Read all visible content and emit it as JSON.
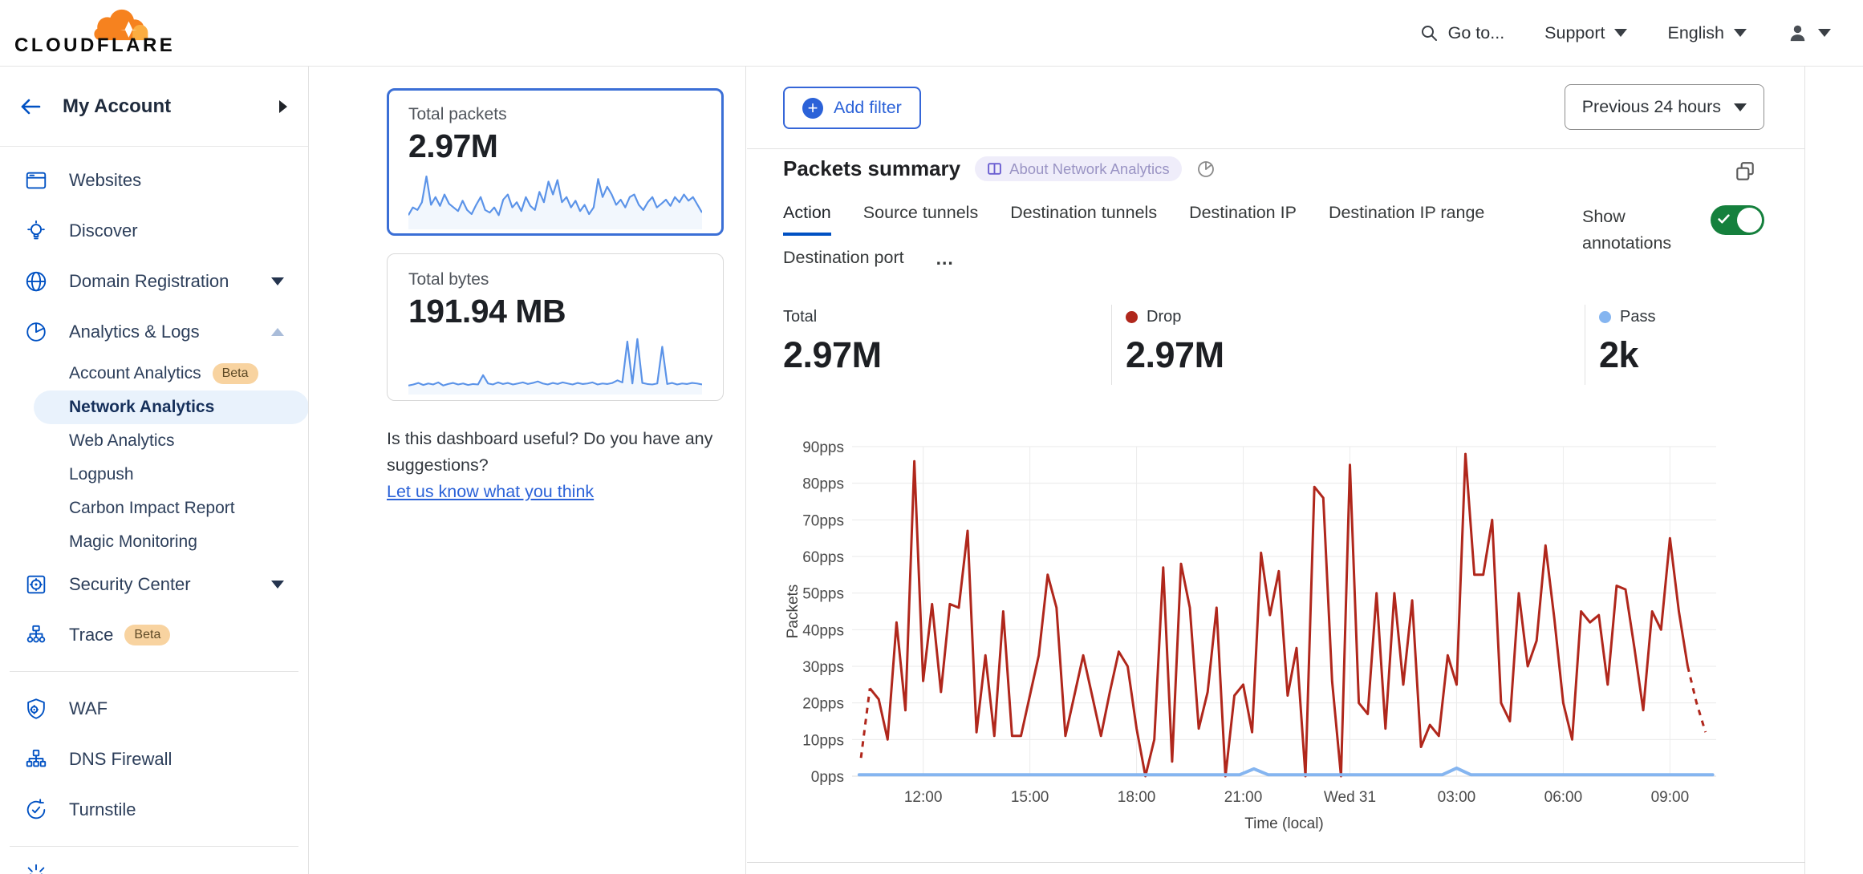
{
  "colors": {
    "accent_blue": "#0051C3",
    "link_blue": "#2B62D8",
    "cf_orange": "#F6821F",
    "cf_orange_light": "#FBAD41",
    "drop_red": "#B0271C",
    "pass_blue": "#85B5F0",
    "sparkline_blue": "#5B93E8",
    "toggle_green": "#15803D",
    "active_pill_bg": "#E9F2FC",
    "beta_bg": "#F8D3A0"
  },
  "header": {
    "logo_text": "CLOUDFLARE",
    "goto_label": "Go to...",
    "support_label": "Support",
    "language_label": "English"
  },
  "sidebar": {
    "account_label": "My Account",
    "items": [
      {
        "type": "item",
        "icon": "browser-icon",
        "label": "Websites"
      },
      {
        "type": "item",
        "icon": "lightbulb-icon",
        "label": "Discover"
      },
      {
        "type": "item",
        "icon": "globe-icon",
        "label": "Domain Registration",
        "caret": "down"
      },
      {
        "type": "item",
        "icon": "pie-chart-icon",
        "label": "Analytics & Logs",
        "caret": "up"
      },
      {
        "type": "sub",
        "label": "Account Analytics",
        "badge": "Beta"
      },
      {
        "type": "sub",
        "label": "Network Analytics",
        "active": true
      },
      {
        "type": "sub",
        "label": "Web Analytics"
      },
      {
        "type": "sub",
        "label": "Logpush"
      },
      {
        "type": "sub",
        "label": "Carbon Impact Report"
      },
      {
        "type": "sub",
        "label": "Magic Monitoring"
      },
      {
        "type": "item",
        "icon": "safe-icon",
        "label": "Security Center",
        "caret": "down"
      },
      {
        "type": "item",
        "icon": "trace-icon",
        "label": "Trace",
        "badge": "Beta"
      },
      {
        "type": "divider"
      },
      {
        "type": "item",
        "icon": "shield-gear-icon",
        "label": "WAF"
      },
      {
        "type": "item",
        "icon": "hierarchy-icon",
        "label": "DNS Firewall"
      },
      {
        "type": "item",
        "icon": "refresh-check-icon",
        "label": "Turnstile"
      },
      {
        "type": "divider"
      },
      {
        "type": "item",
        "icon": "starburst-icon",
        "label": "",
        "partial": true
      }
    ]
  },
  "middle": {
    "cards": [
      {
        "label": "Total packets",
        "value": "2.97M",
        "selected": true
      },
      {
        "label": "Total bytes",
        "value": "191.94 MB",
        "selected": false
      }
    ],
    "feedback_question": "Is this dashboard useful? Do you have any suggestions?",
    "feedback_link": "Let us know what you think"
  },
  "main": {
    "add_filter_label": "Add filter",
    "time_range_label": "Previous 24 hours",
    "panel_title": "Packets summary",
    "about_badge": "About Network Analytics",
    "tabs_row1": [
      "Action",
      "Source tunnels",
      "Destination tunnels",
      "Destination IP",
      "Destination IP range"
    ],
    "tabs_row2": [
      "Destination port"
    ],
    "tabs_overflow": "...",
    "active_tab": "Action",
    "show_annotations_label": "Show annotations",
    "stats": [
      {
        "label": "Total",
        "value": "2.97M"
      },
      {
        "label": "Drop",
        "value": "2.97M",
        "dot": "#B0271C"
      },
      {
        "label": "Pass",
        "value": "2k",
        "dot": "#85B5F0"
      }
    ]
  },
  "chart_data": [
    {
      "type": "line",
      "title": "Packets summary",
      "xlabel": "Time (local)",
      "ylabel": "Packets",
      "ylim": [
        0,
        90
      ],
      "y_tick_labels": [
        "0pps",
        "10pps",
        "20pps",
        "30pps",
        "40pps",
        "50pps",
        "60pps",
        "70pps",
        "80pps",
        "90pps"
      ],
      "x_tick_labels": [
        "12:00",
        "15:00",
        "18:00",
        "21:00",
        "Wed 31",
        "03:00",
        "06:00",
        "09:00"
      ],
      "x_tick_hours": [
        12,
        15,
        18,
        21,
        24,
        27,
        30,
        33
      ],
      "x_start_hour": 10.0,
      "x_end_hour": 34.3,
      "grid": true,
      "legend_position": "none",
      "series": [
        {
          "name": "Drop",
          "color": "#B0271C",
          "unit": "pps",
          "start_hour": 10.25,
          "step_hours": 0.25,
          "dashed_head_points": 2,
          "dashed_tail_points": 3,
          "values": [
            5,
            24,
            21,
            10,
            42,
            18,
            86,
            26,
            47,
            23,
            47,
            46,
            67,
            12,
            33,
            11,
            45,
            11,
            11,
            22,
            33,
            55,
            46,
            11,
            22,
            33,
            22,
            11,
            23,
            34,
            30,
            13,
            0,
            10,
            57,
            4,
            58,
            46,
            13,
            23,
            46,
            0,
            22,
            25,
            12,
            61,
            44,
            56,
            22,
            35,
            0,
            79,
            76,
            26,
            0,
            85,
            20,
            17,
            50,
            13,
            50,
            25,
            48,
            8,
            14,
            11,
            33,
            25,
            88,
            55,
            55,
            70,
            20,
            15,
            50,
            30,
            37,
            63,
            43,
            20,
            10,
            45,
            42,
            44,
            25,
            52,
            51,
            35,
            18,
            45,
            40,
            65,
            45,
            30,
            20,
            12
          ]
        },
        {
          "name": "Pass",
          "color": "#85B5F0",
          "unit": "pps",
          "baseline": 0.4,
          "start_hour": 10.2,
          "end_hour": 34.2,
          "bumps": [
            {
              "hour": 21.3,
              "value": 2.0
            },
            {
              "hour": 27.0,
              "value": 2.2
            }
          ]
        }
      ]
    },
    {
      "type": "line",
      "title": "Total packets sparkline",
      "values": [
        20,
        35,
        30,
        45,
        95,
        40,
        55,
        38,
        60,
        42,
        35,
        28,
        48,
        30,
        22,
        40,
        55,
        30,
        25,
        35,
        20,
        50,
        60,
        35,
        45,
        28,
        55,
        38,
        30,
        65,
        45,
        85,
        60,
        88,
        45,
        55,
        35,
        48,
        28,
        40,
        22,
        35,
        90,
        55,
        75,
        60,
        40,
        50,
        35,
        55,
        60,
        40,
        30,
        45,
        55,
        35,
        42,
        50,
        38,
        55,
        45,
        60,
        48,
        55,
        40,
        25
      ]
    },
    {
      "type": "line",
      "title": "Total bytes sparkline",
      "values": [
        10,
        12,
        15,
        11,
        14,
        12,
        16,
        10,
        13,
        15,
        12,
        14,
        11,
        13,
        12,
        30,
        14,
        12,
        16,
        13,
        15,
        12,
        14,
        16,
        13,
        15,
        18,
        14,
        12,
        15,
        13,
        16,
        14,
        12,
        15,
        13,
        14,
        16,
        12,
        14,
        13,
        15,
        20,
        16,
        95,
        14,
        100,
        15,
        13,
        12,
        14,
        85,
        13,
        15,
        12,
        14,
        13,
        15,
        14,
        12
      ]
    }
  ]
}
